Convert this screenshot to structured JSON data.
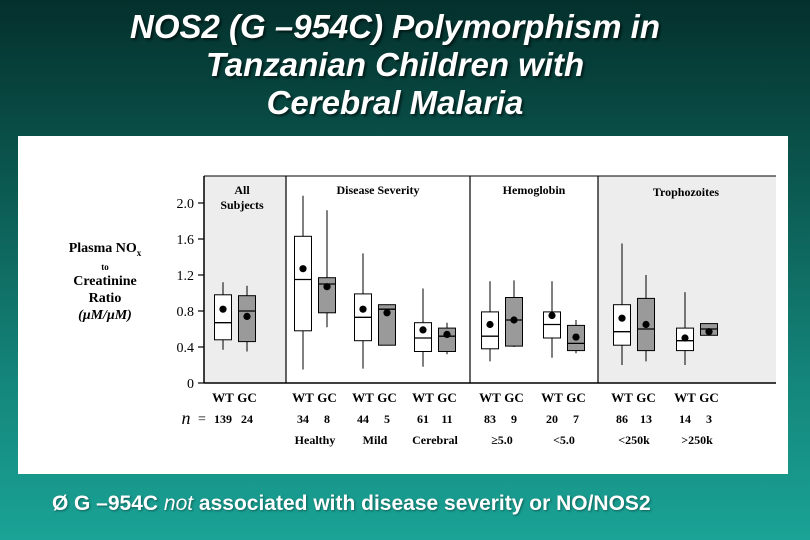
{
  "slide": {
    "title_lines": [
      "NOS2 (G –954C) Polymorphism in",
      "Tanzanian Children with",
      "Cerebral Malaria"
    ],
    "bullet_glyph": "Ø",
    "bullet_pre": "G –954C ",
    "bullet_em": "not",
    "bullet_post": " associated with disease severity or NO/NOS2",
    "background_top": "#04302c",
    "background_bottom": "#1aa396"
  },
  "chart_data": {
    "type": "box",
    "ylabel_line1": "Plasma NO",
    "ylabel_sub": "x",
    "ylabel_line2": "to",
    "ylabel_line3": "Creatinine",
    "ylabel_line4": "Ratio",
    "ylabel_unit": "(μM/μM)",
    "yticks": [
      "0",
      "0.4",
      "0.8",
      "1.2",
      "1.6",
      "2.0"
    ],
    "ylim": [
      0,
      2.3
    ],
    "n_label": "n",
    "panels": [
      {
        "title": "All Subjects",
        "shaded": true,
        "titles_multi": [
          "All",
          "Subjects"
        ]
      },
      {
        "title": "Disease Severity",
        "shaded": false
      },
      {
        "title": "Hemoglobin",
        "shaded": false
      },
      {
        "title": "Trophozoites",
        "shaded": true
      }
    ],
    "groups": [
      {
        "panel": 0,
        "label": "",
        "boxes": [
          {
            "genotype": "WT",
            "n": "139",
            "min": 0.37,
            "q1": 0.48,
            "median": 0.67,
            "q3": 0.98,
            "max": 1.12,
            "mean": 0.82
          },
          {
            "genotype": "GC",
            "n": "24",
            "min": 0.35,
            "q1": 0.46,
            "median": 0.8,
            "q3": 0.97,
            "max": 1.08,
            "mean": 0.74
          }
        ]
      },
      {
        "panel": 1,
        "label": "Healthy",
        "boxes": [
          {
            "genotype": "WT",
            "n": "34",
            "min": 0.15,
            "q1": 0.58,
            "median": 1.15,
            "q3": 1.63,
            "max": 2.08,
            "mean": 1.27
          },
          {
            "genotype": "GC",
            "n": "8",
            "min": 0.62,
            "q1": 0.78,
            "median": 1.1,
            "q3": 1.17,
            "max": 1.92,
            "mean": 1.07
          }
        ]
      },
      {
        "panel": 1,
        "label": "Mild",
        "boxes": [
          {
            "genotype": "WT",
            "n": "44",
            "min": 0.16,
            "q1": 0.47,
            "median": 0.73,
            "q3": 0.99,
            "max": 1.44,
            "mean": 0.82
          },
          {
            "genotype": "GC",
            "n": "5",
            "min": 0.42,
            "q1": 0.42,
            "median": 0.82,
            "q3": 0.87,
            "max": 0.87,
            "mean": 0.78
          }
        ]
      },
      {
        "panel": 1,
        "label": "Cerebral",
        "boxes": [
          {
            "genotype": "WT",
            "n": "61",
            "min": 0.18,
            "q1": 0.35,
            "median": 0.5,
            "q3": 0.67,
            "max": 1.05,
            "mean": 0.59
          },
          {
            "genotype": "GC",
            "n": "11",
            "min": 0.32,
            "q1": 0.35,
            "median": 0.52,
            "q3": 0.61,
            "max": 0.67,
            "mean": 0.54
          }
        ]
      },
      {
        "panel": 2,
        "label": "≥5.0",
        "boxes": [
          {
            "genotype": "WT",
            "n": "83",
            "min": 0.24,
            "q1": 0.38,
            "median": 0.52,
            "q3": 0.79,
            "max": 1.13,
            "mean": 0.65
          },
          {
            "genotype": "GC",
            "n": "9",
            "min": 0.4,
            "q1": 0.41,
            "median": 0.7,
            "q3": 0.95,
            "max": 1.14,
            "mean": 0.7
          }
        ]
      },
      {
        "panel": 2,
        "label": "<5.0",
        "boxes": [
          {
            "genotype": "WT",
            "n": "20",
            "min": 0.28,
            "q1": 0.5,
            "median": 0.65,
            "q3": 0.79,
            "max": 1.13,
            "mean": 0.75
          },
          {
            "genotype": "GC",
            "n": "7",
            "min": 0.33,
            "q1": 0.36,
            "median": 0.44,
            "q3": 0.64,
            "max": 0.7,
            "mean": 0.51
          }
        ]
      },
      {
        "panel": 3,
        "label": "<250k",
        "boxes": [
          {
            "genotype": "WT",
            "n": "86",
            "min": 0.2,
            "q1": 0.42,
            "median": 0.57,
            "q3": 0.87,
            "max": 1.55,
            "mean": 0.72
          },
          {
            "genotype": "GC",
            "n": "13",
            "min": 0.24,
            "q1": 0.36,
            "median": 0.6,
            "q3": 0.94,
            "max": 1.2,
            "mean": 0.65
          }
        ]
      },
      {
        "panel": 3,
        "label": ">250k",
        "boxes": [
          {
            "genotype": "WT",
            "n": "14",
            "min": 0.2,
            "q1": 0.36,
            "median": 0.47,
            "q3": 0.61,
            "max": 1.01,
            "mean": 0.5
          },
          {
            "genotype": "GC",
            "n": "3",
            "min": 0.53,
            "q1": 0.53,
            "median": 0.6,
            "q3": 0.66,
            "max": 0.66,
            "mean": 0.57
          }
        ]
      }
    ]
  }
}
